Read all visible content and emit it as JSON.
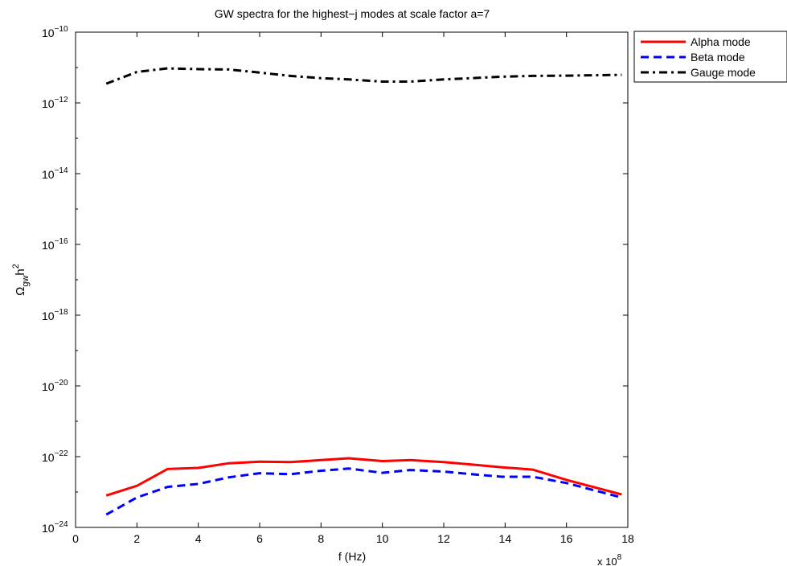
{
  "chart_data": {
    "type": "line",
    "title": "GW spectra for the highest−j modes at scale factor a=7",
    "xlabel": "f (Hz)",
    "x_multiplier_label": {
      "base": "x 10",
      "exp": "8"
    },
    "ylabel": {
      "main": "Ω",
      "sub": "gw",
      "tail": "h",
      "sup": "2"
    },
    "xlim": [
      0,
      18
    ],
    "ylim_log10": [
      -24,
      -10
    ],
    "yscale": "log",
    "grid": false,
    "legend_position": "top-right outside",
    "x_ticks": [
      0,
      2,
      4,
      6,
      8,
      10,
      12,
      14,
      16,
      18
    ],
    "x_tick_labels": [
      "0",
      "2",
      "4",
      "6",
      "8",
      "10",
      "12",
      "14",
      "16",
      "18"
    ],
    "y_ticks_log10": [
      -24,
      -22,
      -20,
      -18,
      -16,
      -14,
      -12,
      -10
    ],
    "y_tick_labels": [
      {
        "base": "10",
        "exp": "−24"
      },
      {
        "base": "10",
        "exp": "−22"
      },
      {
        "base": "10",
        "exp": "−20"
      },
      {
        "base": "10",
        "exp": "−18"
      },
      {
        "base": "10",
        "exp": "−16"
      },
      {
        "base": "10",
        "exp": "−14"
      },
      {
        "base": "10",
        "exp": "−12"
      },
      {
        "base": "10",
        "exp": "−10"
      }
    ],
    "x": [
      1,
      2,
      3,
      4,
      5,
      6,
      7,
      8,
      8.9,
      10,
      10.9,
      12,
      12.9,
      13.9,
      14.9,
      16,
      17.8
    ],
    "series": [
      {
        "name": "Alpha mode",
        "color": "#ff0000",
        "dash": "solid",
        "values": [
          8e-24,
          1.5e-23,
          4.5e-23,
          4.8e-23,
          6.5e-23,
          7.2e-23,
          7e-23,
          8e-23,
          9e-23,
          7.5e-23,
          8e-23,
          7e-23,
          6e-23,
          5e-23,
          4.3e-23,
          2.2e-23,
          8.5e-24
        ]
      },
      {
        "name": "Beta mode",
        "color": "#0000ff",
        "dash": "dashed",
        "values": [
          2.3e-24,
          7e-24,
          1.4e-23,
          1.7e-23,
          2.6e-23,
          3.4e-23,
          3.2e-23,
          4e-23,
          4.6e-23,
          3.5e-23,
          4.2e-23,
          3.8e-23,
          3.2e-23,
          2.7e-23,
          2.7e-23,
          1.8e-23,
          7e-24
        ]
      },
      {
        "name": "Gauge mode",
        "color": "#000000",
        "dash": "dashdot",
        "values": [
          3.5e-12,
          7.5e-12,
          9.5e-12,
          9e-12,
          8.8e-12,
          7.2e-12,
          5.8e-12,
          5e-12,
          4.6e-12,
          4e-12,
          4e-12,
          4.6e-12,
          5e-12,
          5.5e-12,
          5.8e-12,
          5.9e-12,
          6.2e-12
        ]
      }
    ]
  }
}
